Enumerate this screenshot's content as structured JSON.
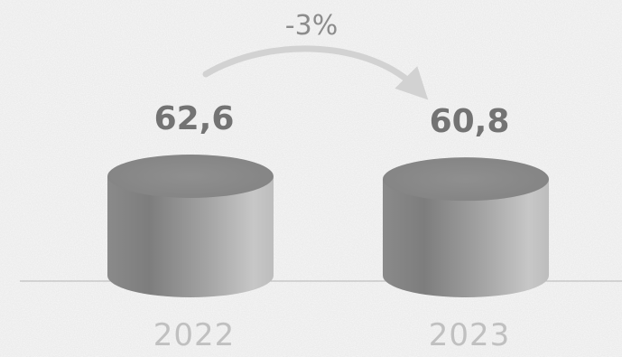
{
  "chart_data": {
    "type": "bar",
    "categories": [
      "2022",
      "2023"
    ],
    "values": [
      62.6,
      60.8
    ],
    "value_labels": [
      "62,6",
      "60,8"
    ],
    "change_label": "-3%",
    "title": "",
    "xlabel": "",
    "ylabel": "",
    "legend": "none",
    "grid": false
  },
  "colors": {
    "background": "#ececec",
    "cylinder_light": "#c4c4c4",
    "cylinder_mid": "#9a9a9a",
    "cylinder_dark": "#7d7d7d",
    "cylinder_top": "#8d8d8d",
    "value_text": "#737373",
    "category_text": "#c0c0c0",
    "change_text": "#8c8c8c",
    "arrow": "#d2d2d2",
    "baseline": "#b5b5b5"
  }
}
